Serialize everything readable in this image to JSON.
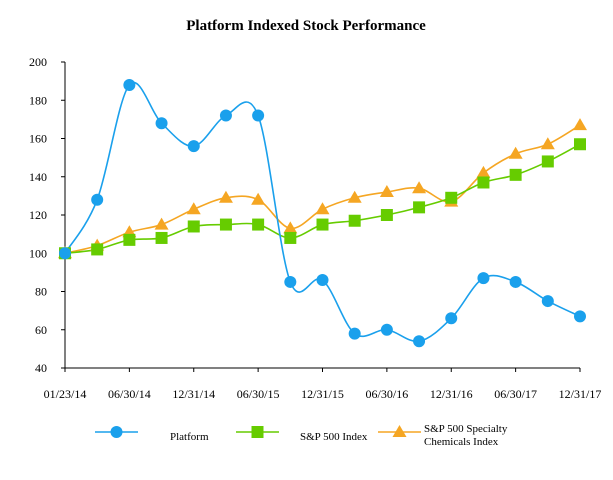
{
  "chart_data": {
    "type": "line",
    "title": "Platform Indexed Stock Performance",
    "xlabel": "",
    "ylabel": "",
    "ylim": [
      40,
      200
    ],
    "yticks": [
      40,
      60,
      80,
      100,
      120,
      140,
      160,
      180,
      200
    ],
    "xtick_labels": [
      "01/23/14",
      "06/30/14",
      "12/31/14",
      "06/30/15",
      "12/31/15",
      "06/30/16",
      "12/31/16",
      "06/30/17",
      "12/31/17"
    ],
    "grid": false,
    "legend_position": "bottom",
    "series": [
      {
        "name": "Platform",
        "color": "#1aa0ec",
        "marker": "circle",
        "values": [
          100,
          128,
          188,
          168,
          156,
          172,
          172,
          85,
          86,
          58,
          60,
          54,
          66,
          87,
          85,
          75,
          67
        ]
      },
      {
        "name": "S&P 500 Index",
        "color": "#66cc00",
        "marker": "square",
        "values": [
          100,
          102,
          107,
          108,
          114,
          115,
          115,
          108,
          115,
          117,
          120,
          124,
          129,
          137,
          141,
          148,
          157
        ]
      },
      {
        "name": "S&P 500 Specialty Chemicals Index",
        "legend_lines": [
          "S&P 500 Specialty",
          "Chemicals Index"
        ],
        "color": "#f5a623",
        "marker": "triangle",
        "values": [
          100,
          104,
          111,
          115,
          123,
          129,
          128,
          113,
          123,
          129,
          132,
          134,
          127,
          142,
          152,
          157,
          167
        ]
      }
    ]
  }
}
